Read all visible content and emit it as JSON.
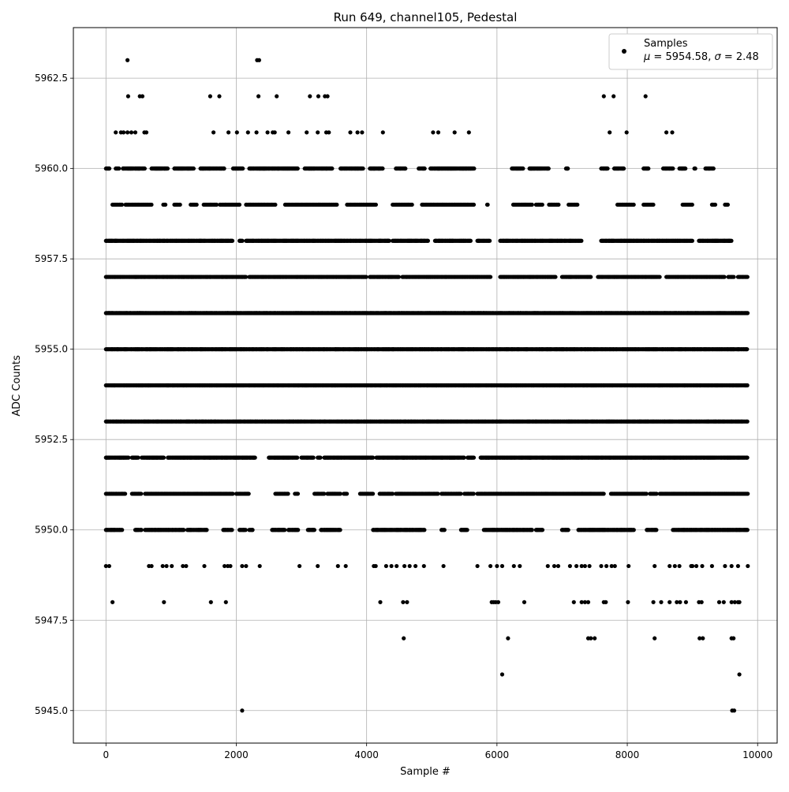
{
  "chart_data": {
    "type": "scatter",
    "title": "Run 649, channel105, Pedestal",
    "xlabel": "Sample #",
    "ylabel": "ADC Counts",
    "xlim": [
      -500,
      10300
    ],
    "ylim": [
      5944.1,
      5963.9
    ],
    "xticks": [
      0,
      2000,
      4000,
      6000,
      8000,
      10000
    ],
    "xtick_labels": [
      "0",
      "2000",
      "4000",
      "6000",
      "8000",
      "10000"
    ],
    "yticks": [
      5945.0,
      5947.5,
      5950.0,
      5952.5,
      5955.0,
      5957.5,
      5960.0,
      5962.5
    ],
    "ytick_labels": [
      "5945.0",
      "5947.5",
      "5950.0",
      "5952.5",
      "5955.0",
      "5957.5",
      "5960.0",
      "5962.5"
    ],
    "grid": true,
    "marker_color": "#000000",
    "legend": {
      "placement": "top-right",
      "entries": [
        {
          "label": "Samples",
          "stats": "μ = 5954.58, σ = 2.48"
        }
      ]
    },
    "series": [
      {
        "n_samples": 9850,
        "mean": 5954.58,
        "sigma": 2.48,
        "levels": [
          {
            "y": 5963,
            "x": [
              330,
              2320,
              2350
            ]
          },
          {
            "y": 5962,
            "x": [
              340,
              520,
              560,
              1600,
              1740,
              2340,
              2620,
              3130,
              3260,
              3360,
              3400,
              7640,
              7790,
              8280
            ]
          },
          {
            "y": 5961,
            "x": [
              150,
              230,
              270,
              330,
              390,
              450,
              590,
              620,
              1650,
              1880,
              2010,
              2180,
              2310,
              2480,
              2560,
              2590,
              2800,
              3080,
              3250,
              3380,
              3420,
              3750,
              3860,
              3930,
              4250,
              5020,
              5100,
              5350,
              5570,
              7730,
              7990,
              8600,
              8690
            ]
          },
          {
            "y": 5960,
            "x": [
              [
                0,
                60
              ],
              [
                150,
                200
              ],
              [
                260,
                600
              ],
              [
                700,
                950
              ],
              [
                1050,
                1350
              ],
              [
                1450,
                1820
              ],
              [
                1950,
                2100
              ],
              [
                2200,
                2950
              ],
              [
                3050,
                3480
              ],
              [
                3600,
                3950
              ],
              [
                4050,
                4260
              ],
              [
                4450,
                4600
              ],
              [
                4800,
                4900
              ],
              [
                4980,
                5650
              ],
              [
                6230,
                6400
              ],
              [
                6500,
                6800
              ],
              [
                7060,
                7100
              ],
              [
                7600,
                7700
              ],
              [
                7800,
                7950
              ],
              [
                8250,
                8330
              ],
              [
                8550,
                8700
              ],
              [
                8800,
                8900
              ],
              [
                9030,
                9050
              ],
              [
                9200,
                9330
              ]
            ]
          },
          {
            "y": 5959,
            "x": [
              [
                100,
                250
              ],
              [
                300,
                700
              ],
              [
                880,
                920
              ],
              [
                1050,
                1150
              ],
              [
                1300,
                1400
              ],
              [
                1500,
                1700
              ],
              [
                1750,
                2050
              ],
              [
                2150,
                2600
              ],
              [
                2750,
                3550
              ],
              [
                3700,
                4150
              ],
              [
                4400,
                4700
              ],
              [
                4850,
                5650
              ],
              [
                5850,
                5870
              ],
              [
                6250,
                6550
              ],
              [
                6600,
                6700
              ],
              [
                6800,
                6950
              ],
              [
                7100,
                7250
              ],
              [
                7850,
                8100
              ],
              [
                8250,
                8400
              ],
              [
                8850,
                9000
              ],
              [
                9300,
                9350
              ],
              [
                9500,
                9550
              ]
            ]
          },
          {
            "y": 5958,
            "x": [
              [
                0,
                1950
              ],
              [
                2050,
                2100
              ],
              [
                2150,
                4350
              ],
              [
                4400,
                4950
              ],
              [
                5050,
                5600
              ],
              [
                5700,
                5900
              ],
              [
                6050,
                7300
              ],
              [
                7600,
                8100
              ],
              [
                8100,
                9000
              ],
              [
                9100,
                9600
              ]
            ]
          },
          {
            "y": 5957,
            "x": [
              [
                0,
                2150
              ],
              [
                2200,
                4000
              ],
              [
                4050,
                4500
              ],
              [
                4550,
                5900
              ],
              [
                6050,
                6900
              ],
              [
                7000,
                7450
              ],
              [
                7550,
                8500
              ],
              [
                8600,
                9500
              ],
              [
                9550,
                9650
              ],
              [
                9700,
                9850
              ]
            ]
          },
          {
            "y": 5956,
            "x": [
              [
                0,
                9850
              ]
            ]
          },
          {
            "y": 5955,
            "x": [
              [
                0,
                9850
              ]
            ]
          },
          {
            "y": 5954,
            "x": [
              [
                0,
                9850
              ]
            ]
          },
          {
            "y": 5953,
            "x": [
              [
                0,
                9850
              ]
            ]
          },
          {
            "y": 5952,
            "x": [
              [
                0,
                350
              ],
              [
                400,
                500
              ],
              [
                550,
                900
              ],
              [
                950,
                2300
              ],
              [
                2500,
                2950
              ],
              [
                3000,
                3200
              ],
              [
                3250,
                3300
              ],
              [
                3350,
                4100
              ],
              [
                4150,
                5500
              ],
              [
                5550,
                5650
              ],
              [
                5750,
                9850
              ]
            ]
          },
          {
            "y": 5951,
            "x": [
              [
                0,
                300
              ],
              [
                400,
                550
              ],
              [
                600,
                1950
              ],
              [
                2000,
                2200
              ],
              [
                2600,
                2800
              ],
              [
                2900,
                2950
              ],
              [
                3200,
                3350
              ],
              [
                3400,
                3600
              ],
              [
                3650,
                3700
              ],
              [
                3900,
                4100
              ],
              [
                4200,
                4400
              ],
              [
                4450,
                5100
              ],
              [
                5150,
                5450
              ],
              [
                5500,
                5650
              ],
              [
                5700,
                7650
              ],
              [
                7750,
                8300
              ],
              [
                8350,
                8450
              ],
              [
                8500,
                9850
              ]
            ]
          },
          {
            "y": 5950,
            "x": [
              [
                0,
                250
              ],
              [
                450,
                550
              ],
              [
                600,
                1200
              ],
              [
                1250,
                1550
              ],
              [
                1800,
                1950
              ],
              [
                2050,
                2150
              ],
              [
                2200,
                2250
              ],
              [
                2550,
                2750
              ],
              [
                2800,
                2950
              ],
              [
                3100,
                3200
              ],
              [
                3300,
                3600
              ],
              [
                4100,
                4900
              ],
              [
                5150,
                5200
              ],
              [
                5450,
                5550
              ],
              [
                5800,
                6550
              ],
              [
                6600,
                6700
              ],
              [
                7000,
                7100
              ],
              [
                7250,
                8100
              ],
              [
                8300,
                8450
              ],
              [
                8700,
                9850
              ]
            ]
          },
          {
            "y": 5949,
            "x": [
              0,
              50,
              660,
              700,
              870,
              930,
              1010,
              1180,
              1230,
              1510,
              1820,
              1870,
              1910,
              2090,
              2150,
              2360,
              2970,
              3250,
              3560,
              3680,
              4110,
              4140,
              4300,
              4380,
              4460,
              4580,
              4660,
              4750,
              4880,
              5180,
              5700,
              5900,
              6000,
              6080,
              6260,
              6350,
              6780,
              6880,
              6940,
              7120,
              7220,
              7300,
              7350,
              7420,
              7600,
              7680,
              7760,
              7810,
              8020,
              8420,
              8650,
              8730,
              8800,
              8980,
              9000,
              9060,
              9150,
              9300,
              9500,
              9600,
              9700,
              9850
            ]
          },
          {
            "y": 5948,
            "x": [
              100,
              890,
              1610,
              1840,
              4210,
              4560,
              4620,
              5920,
              5950,
              5980,
              6020,
              6420,
              7180,
              7300,
              7350,
              7400,
              7640,
              7670,
              8010,
              8400,
              8520,
              8650,
              8760,
              8810,
              8900,
              9100,
              9140,
              9410,
              9480,
              9600,
              9650,
              9700,
              9720
            ]
          },
          {
            "y": 5947,
            "x": [
              4570,
              6170,
              7400,
              7440,
              7500,
              8420,
              9110,
              9160,
              9600,
              9630
            ]
          },
          {
            "y": 5946,
            "x": [
              6080,
              9720
            ]
          },
          {
            "y": 5945,
            "x": [
              2090,
              9610,
              9640
            ]
          }
        ]
      }
    ]
  }
}
